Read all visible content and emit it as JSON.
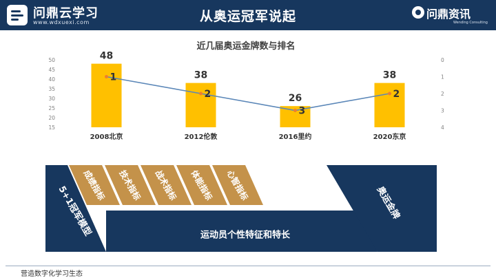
{
  "header": {
    "logo_left_title": "问鼎云学习",
    "logo_left_url": "www.wdxuexi.com",
    "title": "从奥运冠军说起",
    "logo_right_name": "问鼎资讯",
    "logo_right_sub": "Wending Consulting"
  },
  "chart_data": {
    "type": "bar",
    "title": "近几届奥运金牌数与排名",
    "categories": [
      "2008北京",
      "2012伦敦",
      "2016里约",
      "2020东京"
    ],
    "series": [
      {
        "name": "",
        "type": "bar",
        "axis": "left",
        "color": "#ffc000",
        "values": [
          48,
          38,
          26,
          38
        ]
      },
      {
        "name": "",
        "type": "line",
        "axis": "right",
        "color": "#5b87b8",
        "values": [
          1,
          2,
          3,
          2
        ]
      }
    ],
    "ylim": [
      15,
      50
    ],
    "yticks": [
      15,
      20,
      25,
      30,
      35,
      40,
      45,
      50
    ],
    "y2lim": [
      0,
      4
    ],
    "y2ticks": [
      0,
      1,
      2,
      3,
      4
    ],
    "y2_reversed": true,
    "grid": false,
    "legend": "none"
  },
  "diagram": {
    "left_label": "5+1冠军模型",
    "indicators": [
      "成绩指标",
      "技术指标",
      "战术指标",
      "体能指标",
      "心智指标"
    ],
    "traits_label": "运动员个性特征和特长",
    "right_label": "奥运金牌",
    "colors": {
      "navy": "#17375e",
      "gold": "#c4924a"
    }
  },
  "footer": {
    "text": "营造数字化学习生态"
  }
}
